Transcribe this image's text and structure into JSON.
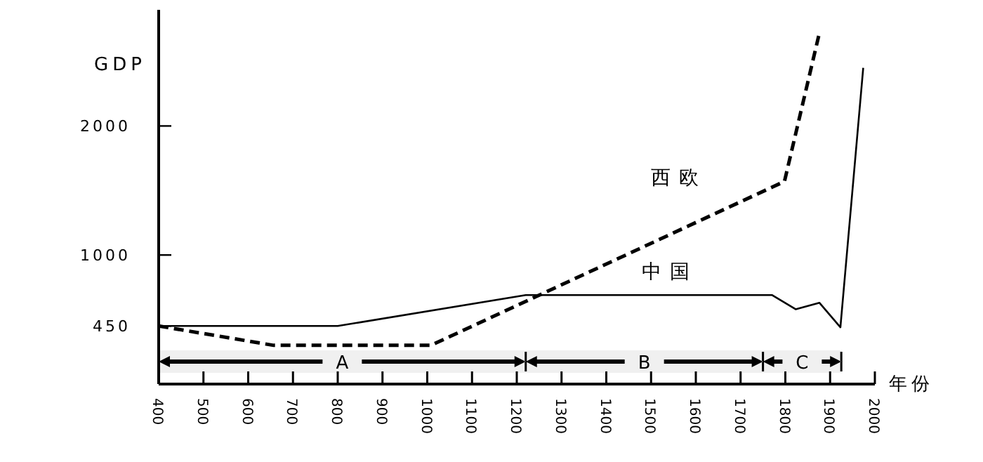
{
  "chart_data": {
    "type": "line",
    "xlabel": "年份",
    "ylabel": "GDP",
    "xlim": [
      400,
      2000
    ],
    "xticks": [
      400,
      500,
      600,
      700,
      800,
      900,
      1000,
      1100,
      1200,
      1300,
      1400,
      1500,
      1600,
      1700,
      1800,
      1900,
      2000
    ],
    "ylim": [
      0,
      2900
    ],
    "yticks": [
      450,
      1000,
      2000
    ],
    "grid": false,
    "legend": false,
    "marker": "none",
    "series": [
      {
        "name": "西欧",
        "color": "#000000",
        "line_style": "dashed",
        "x": [
          400,
          657,
          1008,
          1798,
          1876
        ],
        "values": [
          450,
          300,
          300,
          1570,
          2720
        ]
      },
      {
        "name": "中国",
        "color": "#000000",
        "line_style": "solid",
        "x": [
          400,
          800,
          1220,
          1770,
          1823,
          1876,
          1923,
          1974
        ],
        "values": [
          450,
          450,
          690,
          690,
          580,
          630,
          440,
          2450
        ]
      }
    ],
    "bands": [
      {
        "axis": "x",
        "from": 400,
        "to": 1220,
        "label": "A"
      },
      {
        "axis": "x",
        "from": 1220,
        "to": 1750,
        "label": "B"
      },
      {
        "axis": "x",
        "from": 1750,
        "to": 1925,
        "label": "C"
      }
    ]
  }
}
